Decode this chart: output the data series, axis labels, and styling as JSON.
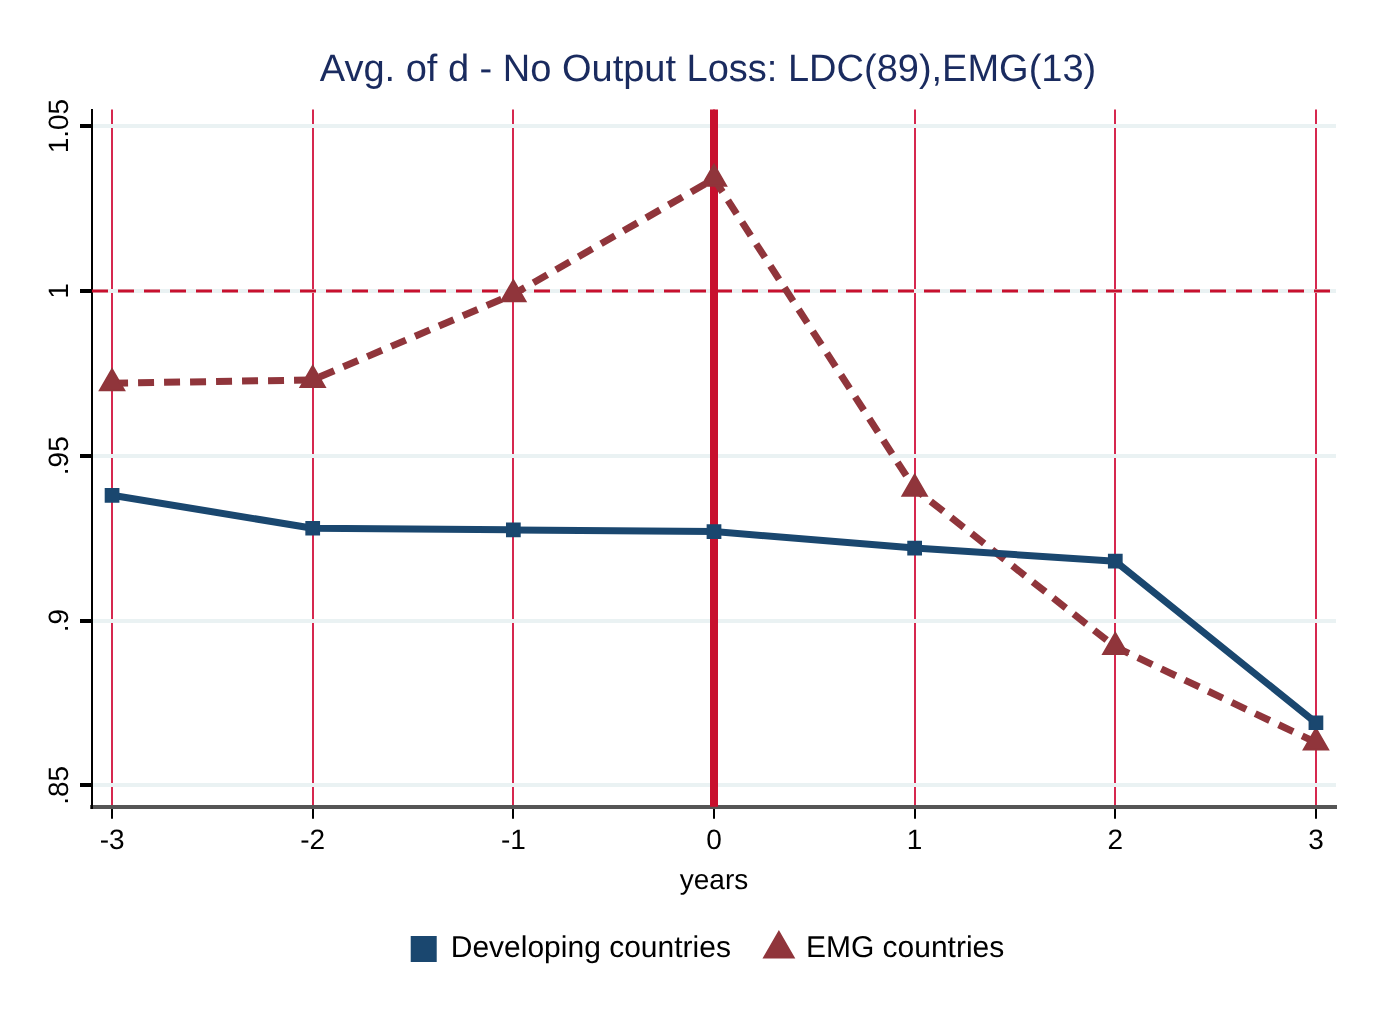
{
  "chart_data": {
    "type": "line",
    "title": "Avg. of d - No Output Loss: LDC(89),EMG(13)",
    "xlabel": "years",
    "x": [
      -3,
      -2,
      -1,
      0,
      1,
      2,
      3
    ],
    "series": [
      {
        "name": "Developing countries",
        "color": "#1a476f",
        "marker": "square",
        "line_style": "solid",
        "values": [
          0.938,
          0.928,
          0.9275,
          0.927,
          0.922,
          0.918,
          0.869
        ]
      },
      {
        "name": "EMG countries",
        "color": "#90353b",
        "marker": "triangle",
        "line_style": "dashed",
        "values": [
          0.972,
          0.973,
          0.999,
          1.034,
          0.94,
          0.892,
          0.863
        ]
      }
    ],
    "xlim": [
      -3.1,
      3.1
    ],
    "xticks": [
      -3,
      -2,
      -1,
      0,
      1,
      2,
      3
    ],
    "ylim": [
      0.8435,
      1.055
    ],
    "yticks": [
      {
        "value": 0.85,
        "label": ".85"
      },
      {
        "value": 0.9,
        "label": ".9"
      },
      {
        "value": 0.95,
        "label": ".95"
      },
      1,
      1.05
    ],
    "ref_lines": [
      {
        "axis": "x",
        "value": 0,
        "color": "#c8102e",
        "line_style": "solid"
      },
      {
        "axis": "y",
        "value": 1,
        "color": "#c8102e",
        "line_style": "dashed"
      }
    ],
    "grid": true,
    "legend": "bottom"
  }
}
